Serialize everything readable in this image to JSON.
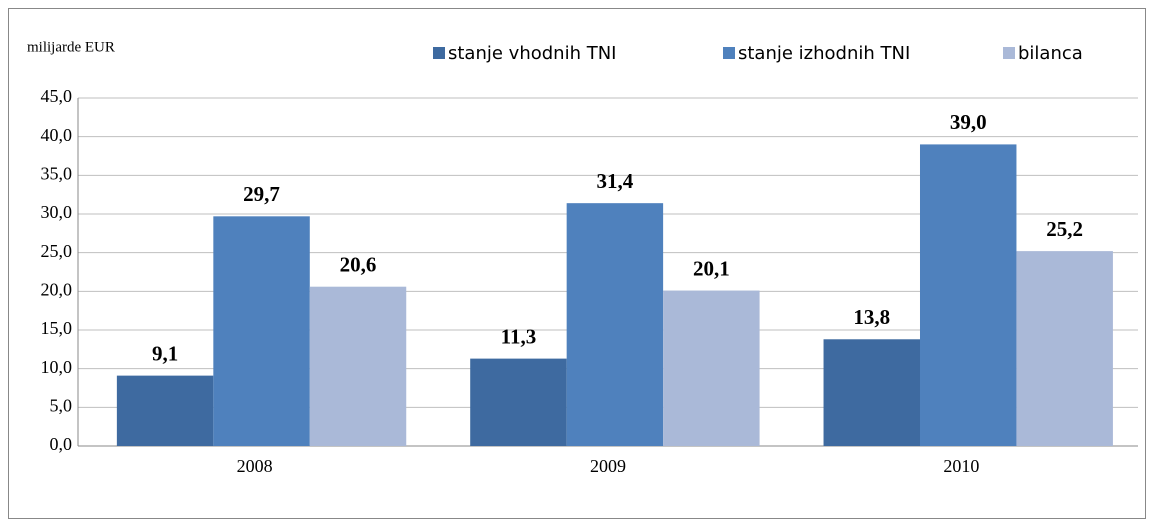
{
  "chart_data": {
    "type": "bar",
    "y_label": "milijarde EUR",
    "categories": [
      "2008",
      "2009",
      "2010"
    ],
    "series": [
      {
        "name": "stanje vhodnih TNI",
        "color": "#3e6aa0",
        "values": [
          9.1,
          11.3,
          13.8
        ],
        "value_labels": [
          "9,1",
          "11,3",
          "13,8"
        ]
      },
      {
        "name": "stanje izhodnih TNI",
        "color": "#4f81bd",
        "values": [
          29.7,
          31.4,
          39.0
        ],
        "value_labels": [
          "29,7",
          "31,4",
          "39,0"
        ]
      },
      {
        "name": "bilanca",
        "color": "#aab9d8",
        "values": [
          20.6,
          20.1,
          25.2
        ],
        "value_labels": [
          "20,6",
          "20,1",
          "25,2"
        ]
      }
    ],
    "ylim": [
      0,
      45
    ],
    "yticks": [
      {
        "value": 0,
        "label": "0,0"
      },
      {
        "value": 5,
        "label": "5,0"
      },
      {
        "value": 10,
        "label": "10,0"
      },
      {
        "value": 15,
        "label": "15,0"
      },
      {
        "value": 20,
        "label": "20,0"
      },
      {
        "value": 25,
        "label": "25,0"
      },
      {
        "value": 30,
        "label": "30,0"
      },
      {
        "value": 35,
        "label": "35,0"
      },
      {
        "value": 40,
        "label": "40,0"
      },
      {
        "value": 45,
        "label": "45,0"
      }
    ],
    "grid": true,
    "legend": "top"
  }
}
